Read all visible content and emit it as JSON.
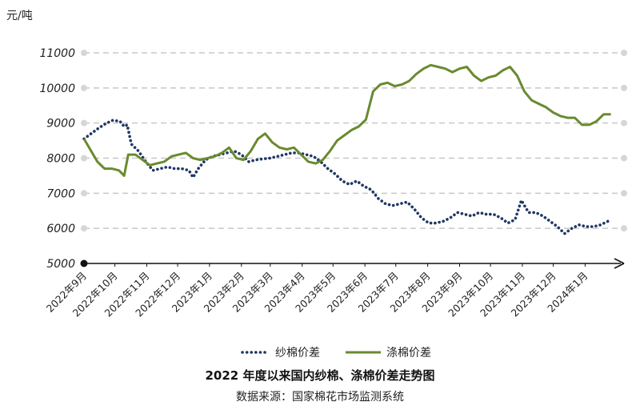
{
  "chart_data": {
    "type": "line",
    "title": "2022 年度以来国内纱棉、涤棉价差走势图",
    "source": "数据来源：国家棉花市场监测系统",
    "unit": "元/吨",
    "ylim": [
      5000,
      11000
    ],
    "yticks": [
      5000,
      6000,
      7000,
      8000,
      9000,
      10000,
      11000
    ],
    "grid": true,
    "legend_position": "bottom",
    "x_domain": [
      "2022-09-01",
      "2024-01-31"
    ],
    "xticks": [
      {
        "date": "2022-09-01",
        "label": "2022年9月"
      },
      {
        "date": "2022-10-01",
        "label": "2022年10月"
      },
      {
        "date": "2022-11-01",
        "label": "2022年11月"
      },
      {
        "date": "2022-12-01",
        "label": "2022年12月"
      },
      {
        "date": "2023-01-01",
        "label": "2023年1月"
      },
      {
        "date": "2023-02-01",
        "label": "2023年2月"
      },
      {
        "date": "2023-03-01",
        "label": "2023年3月"
      },
      {
        "date": "2023-04-01",
        "label": "2023年4月"
      },
      {
        "date": "2023-05-01",
        "label": "2023年5月"
      },
      {
        "date": "2023-06-01",
        "label": "2023年6月"
      },
      {
        "date": "2023-07-01",
        "label": "2023年7月"
      },
      {
        "date": "2023-08-01",
        "label": "2023年8月"
      },
      {
        "date": "2023-09-01",
        "label": "2023年9月"
      },
      {
        "date": "2023-10-01",
        "label": "2023年10月"
      },
      {
        "date": "2023-11-01",
        "label": "2023年11月"
      },
      {
        "date": "2023-12-01",
        "label": "2023年12月"
      },
      {
        "date": "2024-01-01",
        "label": "2024年1月"
      }
    ],
    "series": [
      {
        "name": "纱棉价差",
        "color": "#1f3864",
        "style": "dotted",
        "points": [
          [
            "2022-09-01",
            8550
          ],
          [
            "2022-09-08",
            8700
          ],
          [
            "2022-09-15",
            8850
          ],
          [
            "2022-09-22",
            8980
          ],
          [
            "2022-09-29",
            9080
          ],
          [
            "2022-10-06",
            9050
          ],
          [
            "2022-10-10",
            8900
          ],
          [
            "2022-10-13",
            8950
          ],
          [
            "2022-10-17",
            8400
          ],
          [
            "2022-10-24",
            8200
          ],
          [
            "2022-10-31",
            7900
          ],
          [
            "2022-11-07",
            7650
          ],
          [
            "2022-11-14",
            7700
          ],
          [
            "2022-11-21",
            7750
          ],
          [
            "2022-11-28",
            7700
          ],
          [
            "2022-12-05",
            7700
          ],
          [
            "2022-12-12",
            7650
          ],
          [
            "2022-12-16",
            7450
          ],
          [
            "2022-12-21",
            7700
          ],
          [
            "2022-12-28",
            7950
          ],
          [
            "2023-01-04",
            8050
          ],
          [
            "2023-01-11",
            8100
          ],
          [
            "2023-01-18",
            8150
          ],
          [
            "2023-01-25",
            8200
          ],
          [
            "2023-02-01",
            8100
          ],
          [
            "2023-02-08",
            7900
          ],
          [
            "2023-02-15",
            7950
          ],
          [
            "2023-02-22",
            7980
          ],
          [
            "2023-03-01",
            8000
          ],
          [
            "2023-03-08",
            8050
          ],
          [
            "2023-03-15",
            8100
          ],
          [
            "2023-03-22",
            8150
          ],
          [
            "2023-03-29",
            8150
          ],
          [
            "2023-04-05",
            8100
          ],
          [
            "2023-04-12",
            8050
          ],
          [
            "2023-04-19",
            7900
          ],
          [
            "2023-04-26",
            7700
          ],
          [
            "2023-05-03",
            7550
          ],
          [
            "2023-05-10",
            7350
          ],
          [
            "2023-05-17",
            7250
          ],
          [
            "2023-05-24",
            7350
          ],
          [
            "2023-05-31",
            7200
          ],
          [
            "2023-06-07",
            7100
          ],
          [
            "2023-06-14",
            6850
          ],
          [
            "2023-06-21",
            6700
          ],
          [
            "2023-06-28",
            6650
          ],
          [
            "2023-07-05",
            6700
          ],
          [
            "2023-07-12",
            6750
          ],
          [
            "2023-07-19",
            6550
          ],
          [
            "2023-07-26",
            6300
          ],
          [
            "2023-08-02",
            6150
          ],
          [
            "2023-08-09",
            6150
          ],
          [
            "2023-08-16",
            6200
          ],
          [
            "2023-08-23",
            6300
          ],
          [
            "2023-08-30",
            6450
          ],
          [
            "2023-09-06",
            6400
          ],
          [
            "2023-09-13",
            6350
          ],
          [
            "2023-09-20",
            6450
          ],
          [
            "2023-09-27",
            6400
          ],
          [
            "2023-10-04",
            6400
          ],
          [
            "2023-10-11",
            6300
          ],
          [
            "2023-10-18",
            6150
          ],
          [
            "2023-10-25",
            6250
          ],
          [
            "2023-10-31",
            6800
          ],
          [
            "2023-11-07",
            6450
          ],
          [
            "2023-11-14",
            6450
          ],
          [
            "2023-11-21",
            6350
          ],
          [
            "2023-11-28",
            6200
          ],
          [
            "2023-12-05",
            6050
          ],
          [
            "2023-12-12",
            5850
          ],
          [
            "2023-12-19",
            6000
          ],
          [
            "2023-12-26",
            6100
          ],
          [
            "2024-01-02",
            6050
          ],
          [
            "2024-01-09",
            6050
          ],
          [
            "2024-01-16",
            6100
          ],
          [
            "2024-01-23",
            6200
          ]
        ]
      },
      {
        "name": "涤棉价差",
        "color": "#6a8a2f",
        "style": "solid",
        "points": [
          [
            "2022-09-01",
            8550
          ],
          [
            "2022-09-07",
            8250
          ],
          [
            "2022-09-14",
            7900
          ],
          [
            "2022-09-21",
            7700
          ],
          [
            "2022-09-28",
            7700
          ],
          [
            "2022-10-05",
            7650
          ],
          [
            "2022-10-10",
            7500
          ],
          [
            "2022-10-14",
            8100
          ],
          [
            "2022-10-21",
            8100
          ],
          [
            "2022-10-28",
            7950
          ],
          [
            "2022-11-04",
            7800
          ],
          [
            "2022-11-11",
            7850
          ],
          [
            "2022-11-18",
            7900
          ],
          [
            "2022-11-25",
            8050
          ],
          [
            "2022-12-02",
            8100
          ],
          [
            "2022-12-09",
            8150
          ],
          [
            "2022-12-16",
            8000
          ],
          [
            "2022-12-23",
            7950
          ],
          [
            "2022-12-30",
            8000
          ],
          [
            "2023-01-06",
            8050
          ],
          [
            "2023-01-13",
            8150
          ],
          [
            "2023-01-20",
            8300
          ],
          [
            "2023-01-27",
            8000
          ],
          [
            "2023-02-03",
            7950
          ],
          [
            "2023-02-10",
            8200
          ],
          [
            "2023-02-17",
            8550
          ],
          [
            "2023-02-24",
            8700
          ],
          [
            "2023-03-03",
            8450
          ],
          [
            "2023-03-10",
            8300
          ],
          [
            "2023-03-17",
            8250
          ],
          [
            "2023-03-24",
            8300
          ],
          [
            "2023-03-31",
            8100
          ],
          [
            "2023-04-07",
            7900
          ],
          [
            "2023-04-14",
            7850
          ],
          [
            "2023-04-21",
            7950
          ],
          [
            "2023-04-28",
            8200
          ],
          [
            "2023-05-05",
            8500
          ],
          [
            "2023-05-12",
            8650
          ],
          [
            "2023-05-19",
            8800
          ],
          [
            "2023-05-26",
            8900
          ],
          [
            "2023-06-02",
            9100
          ],
          [
            "2023-06-09",
            9900
          ],
          [
            "2023-06-16",
            10100
          ],
          [
            "2023-06-23",
            10150
          ],
          [
            "2023-06-30",
            10050
          ],
          [
            "2023-07-07",
            10100
          ],
          [
            "2023-07-14",
            10200
          ],
          [
            "2023-07-21",
            10400
          ],
          [
            "2023-07-28",
            10550
          ],
          [
            "2023-08-04",
            10650
          ],
          [
            "2023-08-11",
            10600
          ],
          [
            "2023-08-18",
            10550
          ],
          [
            "2023-08-25",
            10450
          ],
          [
            "2023-09-01",
            10550
          ],
          [
            "2023-09-08",
            10600
          ],
          [
            "2023-09-15",
            10350
          ],
          [
            "2023-09-22",
            10200
          ],
          [
            "2023-09-29",
            10300
          ],
          [
            "2023-10-06",
            10350
          ],
          [
            "2023-10-13",
            10500
          ],
          [
            "2023-10-20",
            10600
          ],
          [
            "2023-10-27",
            10350
          ],
          [
            "2023-11-03",
            9900
          ],
          [
            "2023-11-10",
            9650
          ],
          [
            "2023-11-17",
            9550
          ],
          [
            "2023-11-24",
            9450
          ],
          [
            "2023-12-01",
            9300
          ],
          [
            "2023-12-08",
            9200
          ],
          [
            "2023-12-15",
            9150
          ],
          [
            "2023-12-22",
            9150
          ],
          [
            "2023-12-29",
            8950
          ],
          [
            "2024-01-05",
            8950
          ],
          [
            "2024-01-12",
            9050
          ],
          [
            "2024-01-19",
            9250
          ],
          [
            "2024-01-26",
            9250
          ]
        ]
      }
    ]
  }
}
